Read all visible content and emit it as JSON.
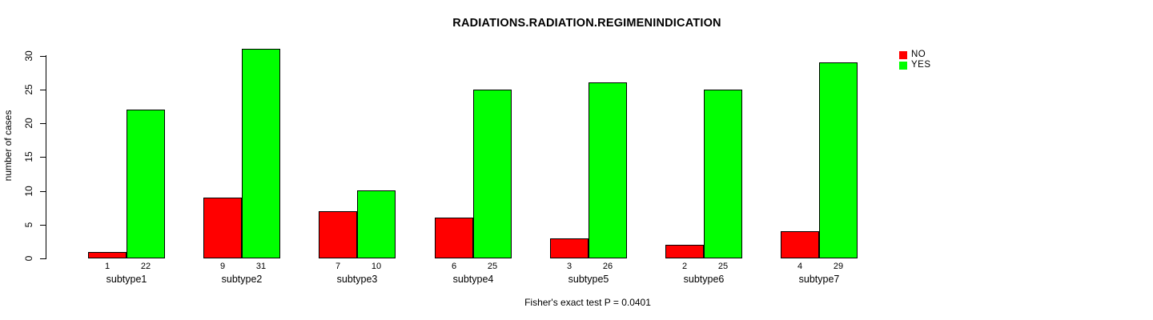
{
  "figure": {
    "title": "RADIATIONS.RADIATION.REGIMENINDICATION",
    "ylabel": "number of cases",
    "footer": "Fisher's exact test P = 0.0401"
  },
  "legend": {
    "items": [
      {
        "label": "NO",
        "color": "#ff0000"
      },
      {
        "label": "YES",
        "color": "#00ff00"
      }
    ]
  },
  "chart_data": {
    "type": "bar",
    "title": "RADIATIONS.RADIATION.REGIMENINDICATION",
    "categories": [
      "subtype1",
      "subtype2",
      "subtype3",
      "subtype4",
      "subtype5",
      "subtype6",
      "subtype7"
    ],
    "series": [
      {
        "name": "NO",
        "color": "#ff0000",
        "values": [
          1,
          9,
          7,
          6,
          3,
          2,
          4
        ]
      },
      {
        "name": "YES",
        "color": "#00ff00",
        "values": [
          22,
          31,
          10,
          25,
          26,
          25,
          29
        ]
      }
    ],
    "bar_value_labels": [
      [
        1,
        22
      ],
      [
        9,
        31
      ],
      [
        7,
        10
      ],
      [
        6,
        25
      ],
      [
        3,
        26
      ],
      [
        2,
        25
      ],
      [
        4,
        29
      ]
    ],
    "xlabel": "",
    "ylabel": "number of cases",
    "yticks": [
      0,
      5,
      10,
      15,
      20,
      25,
      30
    ],
    "ylim": [
      0,
      31
    ],
    "grid": false,
    "legend_position": "top-right",
    "annotation": "Fisher's exact test P = 0.0401"
  }
}
